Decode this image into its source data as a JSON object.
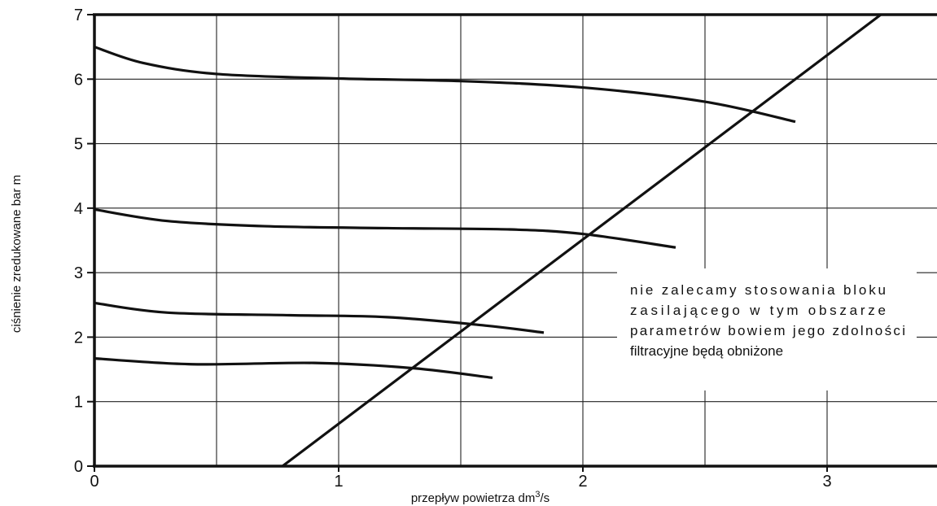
{
  "chart_data": {
    "type": "line",
    "xlabel": "przepływ powietrza dm",
    "xlabel_sup": "3",
    "xlabel_tail": "/s",
    "ylabel": "ciśnienie zredukowane bar m",
    "xlim": [
      0,
      3.45
    ],
    "ylim": [
      0,
      7
    ],
    "x_ticks": [
      "0",
      "1",
      "2",
      "3"
    ],
    "y_ticks": [
      "0",
      "1",
      "2",
      "3",
      "4",
      "5",
      "6",
      "7"
    ],
    "grid": true,
    "series": [
      {
        "x": [
          0,
          0.2,
          0.5,
          1.0,
          1.5,
          2.0,
          2.5,
          2.87
        ],
        "y": [
          6.5,
          6.25,
          6.08,
          6.01,
          5.97,
          5.87,
          5.65,
          5.34
        ]
      },
      {
        "x": [
          0,
          0.3,
          0.7,
          1.2,
          1.7,
          2.0,
          2.38
        ],
        "y": [
          3.98,
          3.8,
          3.72,
          3.69,
          3.67,
          3.6,
          3.39
        ]
      },
      {
        "x": [
          0,
          0.3,
          0.8,
          1.2,
          1.6,
          1.84
        ],
        "y": [
          2.53,
          2.38,
          2.34,
          2.31,
          2.18,
          2.07
        ]
      },
      {
        "x": [
          0,
          0.4,
          0.9,
          1.3,
          1.63
        ],
        "y": [
          1.67,
          1.58,
          1.6,
          1.52,
          1.37
        ]
      },
      {
        "x": [
          0.77,
          3.22
        ],
        "y": [
          0,
          7.0
        ]
      }
    ],
    "annotation": {
      "lines": [
        "nie zalecamy stosowania bloku",
        "zasilającego w tym obszarze",
        "parametrów bowiem jego zdolności",
        "filtracyjne będą obniżone"
      ]
    }
  }
}
